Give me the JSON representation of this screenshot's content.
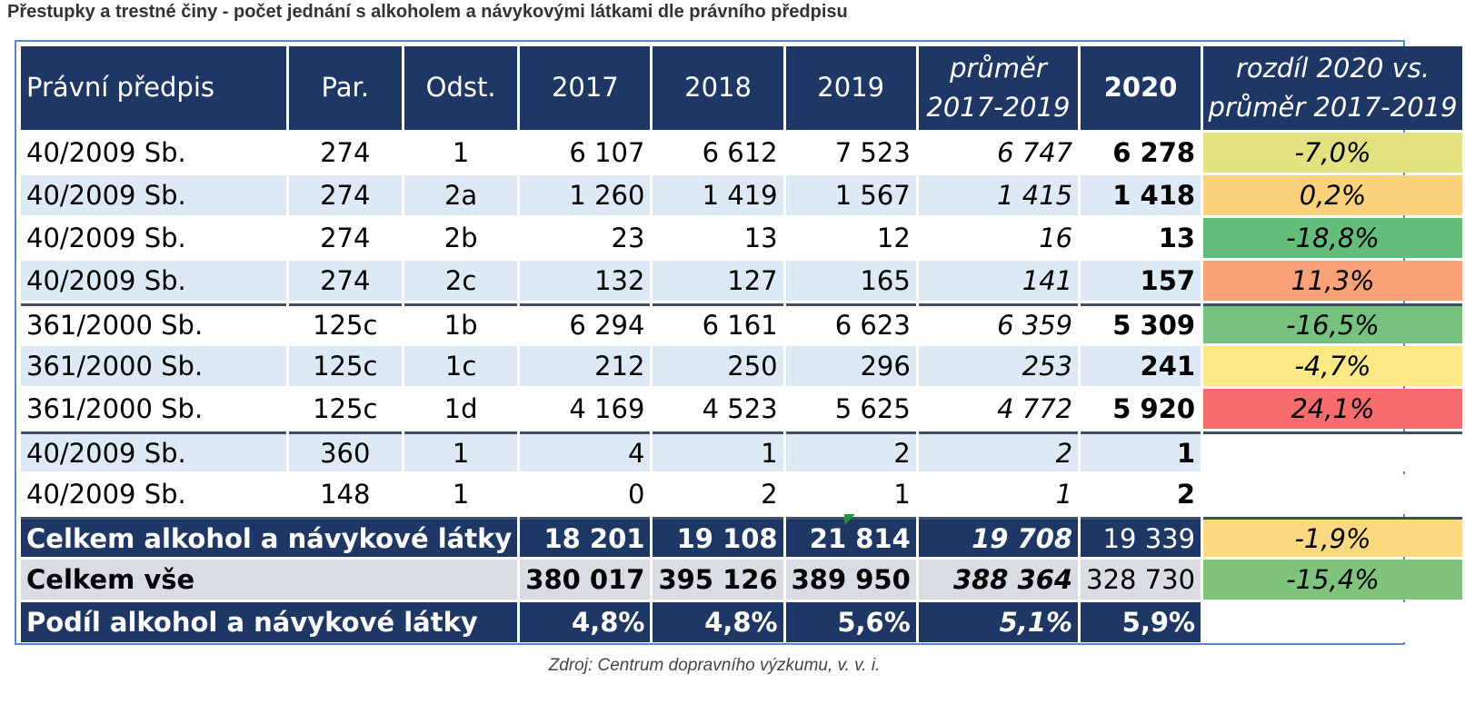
{
  "title": "Přestupky a trestné činy - počet jednání s alkoholem a návykovými látkami dle právního předpisu",
  "headers": {
    "law": "Právní předpis",
    "par": "Par.",
    "odst": "Odst.",
    "y2017": "2017",
    "y2018": "2018",
    "y2019": "2019",
    "avg_line1": "průměr",
    "avg_line2": "2017-2019",
    "y2020": "2020",
    "diff_line1": "rozdíl 2020 vs.",
    "diff_line2": "průměr 2017-2019"
  },
  "rows": [
    {
      "law": "40/2009 Sb.",
      "par": "274",
      "odst": "1",
      "y2017": "6 107",
      "y2018": "6 612",
      "y2019": "7 523",
      "avg": "6 747",
      "y2020": "6 278",
      "diff": "-7,0%",
      "diff_color": "#e3e281"
    },
    {
      "law": "40/2009 Sb.",
      "par": "274",
      "odst": "2a",
      "y2017": "1 260",
      "y2018": "1 419",
      "y2019": "1 567",
      "avg": "1 415",
      "y2020": "1 418",
      "diff": "0,2%",
      "diff_color": "#fcd17e"
    },
    {
      "law": "40/2009 Sb.",
      "par": "274",
      "odst": "2b",
      "y2017": "23",
      "y2018": "13",
      "y2019": "12",
      "avg": "16",
      "y2020": "13",
      "diff": "-18,8%",
      "diff_color": "#65bd7b"
    },
    {
      "law": "40/2009 Sb.",
      "par": "274",
      "odst": "2c",
      "y2017": "132",
      "y2018": "127",
      "y2019": "165",
      "avg": "141",
      "y2020": "157",
      "diff": "11,3%",
      "diff_color": "#f9a278"
    },
    {
      "law": "361/2000 Sb.",
      "par": "125c",
      "odst": "1b",
      "y2017": "6 294",
      "y2018": "6 161",
      "y2019": "6 623",
      "avg": "6 359",
      "y2020": "5 309",
      "diff": "-16,5%",
      "diff_color": "#77c27e"
    },
    {
      "law": "361/2000 Sb.",
      "par": "125c",
      "odst": "1c",
      "y2017": "212",
      "y2018": "250",
      "y2019": "296",
      "avg": "253",
      "y2020": "241",
      "diff": "-4,7%",
      "diff_color": "#fce985"
    },
    {
      "law": "361/2000 Sb.",
      "par": "125c",
      "odst": "1d",
      "y2017": "4 169",
      "y2018": "4 523",
      "y2019": "5 625",
      "avg": "4 772",
      "y2020": "5 920",
      "diff": "24,1%",
      "diff_color": "#f76c6c"
    },
    {
      "law": "40/2009 Sb.",
      "par": "360",
      "odst": "1",
      "y2017": "4",
      "y2018": "1",
      "y2019": "2",
      "avg": "2",
      "y2020": "1",
      "diff": "",
      "diff_color": "#ffffff"
    },
    {
      "law": "40/2009 Sb.",
      "par": "148",
      "odst": "1",
      "y2017": "0",
      "y2018": "2",
      "y2019": "1",
      "avg": "1",
      "y2020": "2",
      "diff": "",
      "diff_color": "#ffffff"
    }
  ],
  "totals": [
    {
      "label": "Celkem alkohol a návykové látky",
      "y2017": "18 201",
      "y2018": "19 108",
      "y2019": "21 814",
      "avg": "19 708",
      "y2020": "19 339",
      "diff": "-1,9%",
      "diff_color": "#fcd880"
    },
    {
      "label": "Celkem vše",
      "y2017": "380 017",
      "y2018": "395 126",
      "y2019": "389 950",
      "avg": "388 364",
      "y2020": "328 730",
      "diff": "-15,4%",
      "diff_color": "#80c37d"
    },
    {
      "label": "Podíl alkohol a návykové látky",
      "y2017": "4,8%",
      "y2018": "4,8%",
      "y2019": "5,6%",
      "avg": "5,1%",
      "y2020": "5,9%",
      "diff": "",
      "diff_color": "#ffffff"
    }
  ],
  "source": "Zdroj: Centrum dopravního výzkumu, v. v. i."
}
